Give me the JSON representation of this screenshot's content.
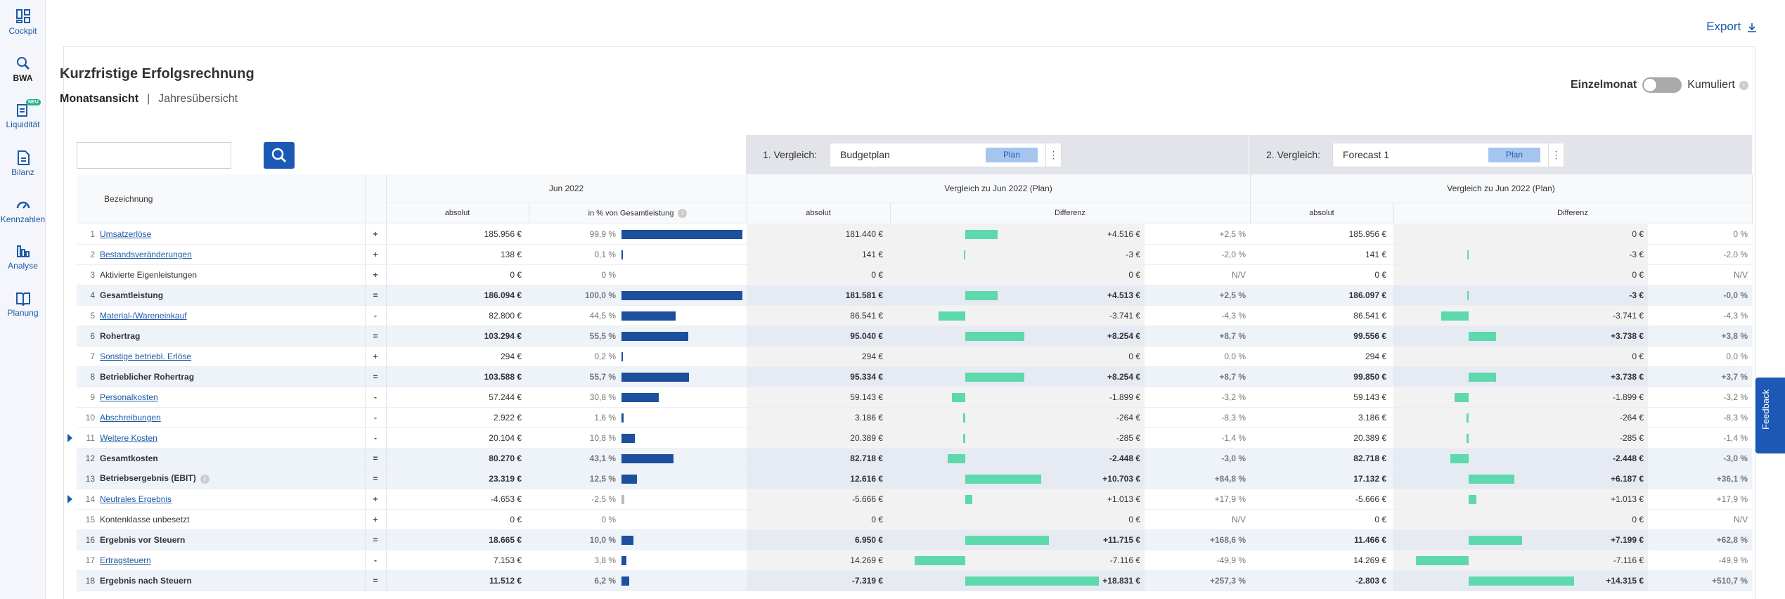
{
  "sidebar": {
    "items": [
      {
        "label": "Cockpit",
        "icon": "dashboard-icon"
      },
      {
        "label": "BWA",
        "icon": "search-chart-icon",
        "active": true
      },
      {
        "label": "Liquidität",
        "icon": "liquidity-icon",
        "badge": "NEU"
      },
      {
        "label": "Bilanz",
        "icon": "document-icon"
      },
      {
        "label": "Kennzahlen",
        "icon": "gauge-icon"
      },
      {
        "label": "Analyse",
        "icon": "bar-chart-icon"
      },
      {
        "label": "Planung",
        "icon": "book-icon"
      }
    ]
  },
  "header": {
    "export_label": "Export"
  },
  "report": {
    "title": "Kurzfristige Erfolgsrechnung",
    "view_month": "Monatsansicht",
    "view_separator": "|",
    "view_year": "Jahresübersicht",
    "toggle_left": "Einzelmonat",
    "toggle_right": "Kumuliert",
    "toggle_state": "Einzelmonat"
  },
  "search": {
    "value": ""
  },
  "comparison1": {
    "label": "1. Vergleich:",
    "selected": "Budgetplan",
    "pill": "Plan"
  },
  "comparison2": {
    "label": "2. Vergleich:",
    "selected": "Forecast 1",
    "pill": "Plan"
  },
  "table": {
    "head": {
      "bezeichnung": "Bezeichnung",
      "period": "Jun 2022",
      "vergleich1": "Vergleich zu Jun 2022 (Plan)",
      "vergleich2": "Vergleich zu Jun 2022 (Plan)",
      "absolut": "absolut",
      "in_prozent": "in % von Gesamtleistung",
      "differenz": "Differenz"
    },
    "rows": [
      {
        "n": "1",
        "name": "Umsatzerlöse",
        "link": true,
        "op": "+",
        "abs": "185.956 €",
        "pct": "99,9 %",
        "share": 99.9,
        "v1abs": "181.440 €",
        "v1diff": "+4.516 €",
        "v1pct": "+2,5 %",
        "v1bar": 4516,
        "v2abs": "185.956 €",
        "v2diff": "0 €",
        "v2pct": "0 %",
        "v2bar": 0
      },
      {
        "n": "2",
        "name": "Bestandsveränderungen",
        "link": true,
        "op": "+",
        "abs": "138 €",
        "pct": "0,1 %",
        "share": 0.1,
        "v1abs": "141 €",
        "v1diff": "-3 €",
        "v1pct": "-2,0 %",
        "v1bar": -3,
        "v2abs": "141 €",
        "v2diff": "-3 €",
        "v2pct": "-2,0 %",
        "v2bar": -3
      },
      {
        "n": "3",
        "name": "Aktivierte Eigenleistungen",
        "link": false,
        "op": "+",
        "abs": "0 €",
        "pct": "0 %",
        "share": 0,
        "v1abs": "0 €",
        "v1diff": "0 €",
        "v1pct": "N/V",
        "v1bar": 0,
        "v2abs": "0 €",
        "v2diff": "0 €",
        "v2pct": "N/V",
        "v2bar": 0
      },
      {
        "n": "4",
        "name": "Gesamtleistung",
        "bold": true,
        "op": "=",
        "abs": "186.094 €",
        "pct": "100,0 %",
        "share": 100,
        "v1abs": "181.581 €",
        "v1diff": "+4.513 €",
        "v1pct": "+2,5 %",
        "v1bar": 4513,
        "v2abs": "186.097 €",
        "v2diff": "-3 €",
        "v2pct": "-0,0 %",
        "v2bar": -3
      },
      {
        "n": "5",
        "name": "Material-/Wareneinkauf",
        "link": true,
        "op": "-",
        "abs": "82.800 €",
        "pct": "44,5 %",
        "share": 44.5,
        "v1abs": "86.541 €",
        "v1diff": "-3.741 €",
        "v1pct": "-4,3 %",
        "v1bar": -3741,
        "v2abs": "86.541 €",
        "v2diff": "-3.741 €",
        "v2pct": "-4,3 %",
        "v2bar": -3741
      },
      {
        "n": "6",
        "name": "Rohertrag",
        "bold": true,
        "op": "=",
        "abs": "103.294 €",
        "pct": "55,5 %",
        "share": 55.5,
        "v1abs": "95.040 €",
        "v1diff": "+8.254 €",
        "v1pct": "+8,7 %",
        "v1bar": 8254,
        "v2abs": "99.556 €",
        "v2diff": "+3.738 €",
        "v2pct": "+3,8 %",
        "v2bar": 3738
      },
      {
        "n": "7",
        "name": "Sonstige betriebl. Erlöse",
        "link": true,
        "op": "+",
        "abs": "294 €",
        "pct": "0,2 %",
        "share": 0.2,
        "v1abs": "294 €",
        "v1diff": "0 €",
        "v1pct": "0,0 %",
        "v1bar": 0,
        "v2abs": "294 €",
        "v2diff": "0 €",
        "v2pct": "0,0 %",
        "v2bar": 0
      },
      {
        "n": "8",
        "name": "Betrieblicher Rohertrag",
        "bold": true,
        "op": "=",
        "abs": "103.588 €",
        "pct": "55,7 %",
        "share": 55.7,
        "v1abs": "95.334 €",
        "v1diff": "+8.254 €",
        "v1pct": "+8,7 %",
        "v1bar": 8254,
        "v2abs": "99.850 €",
        "v2diff": "+3.738 €",
        "v2pct": "+3,7 %",
        "v2bar": 3738
      },
      {
        "n": "9",
        "name": "Personalkosten",
        "link": true,
        "op": "-",
        "abs": "57.244 €",
        "pct": "30,8 %",
        "share": 30.8,
        "v1abs": "59.143 €",
        "v1diff": "-1.899 €",
        "v1pct": "-3,2 %",
        "v1bar": -1899,
        "v2abs": "59.143 €",
        "v2diff": "-1.899 €",
        "v2pct": "-3,2 %",
        "v2bar": -1899
      },
      {
        "n": "10",
        "name": "Abschreibungen",
        "link": true,
        "op": "-",
        "abs": "2.922 €",
        "pct": "1,6 %",
        "share": 1.6,
        "v1abs": "3.186 €",
        "v1diff": "-264 €",
        "v1pct": "-8,3 %",
        "v1bar": -264,
        "v2abs": "3.186 €",
        "v2diff": "-264 €",
        "v2pct": "-8,3 %",
        "v2bar": -264
      },
      {
        "n": "11",
        "name": "Weitere Kosten",
        "link": true,
        "caret": true,
        "op": "-",
        "abs": "20.104 €",
        "pct": "10,8 %",
        "share": 10.8,
        "v1abs": "20.389 €",
        "v1diff": "-285 €",
        "v1pct": "-1,4 %",
        "v1bar": -285,
        "v2abs": "20.389 €",
        "v2diff": "-285 €",
        "v2pct": "-1,4 %",
        "v2bar": -285
      },
      {
        "n": "12",
        "name": "Gesamtkosten",
        "bold": true,
        "op": "=",
        "abs": "80.270 €",
        "pct": "43,1 %",
        "share": 43.1,
        "v1abs": "82.718 €",
        "v1diff": "-2.448 €",
        "v1pct": "-3,0 %",
        "v1bar": -2448,
        "v2abs": "82.718 €",
        "v2diff": "-2.448 €",
        "v2pct": "-3,0 %",
        "v2bar": -2448
      },
      {
        "n": "13",
        "name": "Betriebsergebnis (EBIT)",
        "bold": true,
        "info": true,
        "op": "=",
        "abs": "23.319 €",
        "pct": "12,5 %",
        "share": 12.5,
        "v1abs": "12.616 €",
        "v1diff": "+10.703 €",
        "v1pct": "+84,8 %",
        "v1bar": 10703,
        "v2abs": "17.132 €",
        "v2diff": "+6.187 €",
        "v2pct": "+36,1 %",
        "v2bar": 6187
      },
      {
        "n": "14",
        "name": "Neutrales Ergebnis",
        "link": true,
        "caret": true,
        "op": "+",
        "abs": "-4.653 €",
        "pct": "-2,5 %",
        "share": -2.5,
        "v1abs": "-5.666 €",
        "v1diff": "+1.013 €",
        "v1pct": "+17,9 %",
        "v1bar": 1013,
        "v2abs": "-5.666 €",
        "v2diff": "+1.013 €",
        "v2pct": "+17,9 %",
        "v2bar": 1013
      },
      {
        "n": "15",
        "name": "Kontenklasse unbesetzt",
        "link": false,
        "op": "+",
        "abs": "0 €",
        "pct": "0 %",
        "share": 0,
        "v1abs": "0 €",
        "v1diff": "0 €",
        "v1pct": "N/V",
        "v1bar": 0,
        "v2abs": "0 €",
        "v2diff": "0 €",
        "v2pct": "N/V",
        "v2bar": 0
      },
      {
        "n": "16",
        "name": "Ergebnis vor Steuern",
        "bold": true,
        "op": "=",
        "abs": "18.665 €",
        "pct": "10,0 %",
        "share": 10,
        "v1abs": "6.950 €",
        "v1diff": "+11.715 €",
        "v1pct": "+168,6 %",
        "v1bar": 11715,
        "v2abs": "11.466 €",
        "v2diff": "+7.199 €",
        "v2pct": "+62,8 %",
        "v2bar": 7199
      },
      {
        "n": "17",
        "name": "Ertragsteuern",
        "link": true,
        "op": "-",
        "abs": "7.153 €",
        "pct": "3,8 %",
        "share": 3.8,
        "v1abs": "14.269 €",
        "v1diff": "-7.116 €",
        "v1pct": "-49,9 %",
        "v1bar": -7116,
        "v2abs": "14.269 €",
        "v2diff": "-7.116 €",
        "v2pct": "-49,9 %",
        "v2bar": -7116
      },
      {
        "n": "18",
        "name": "Ergebnis nach Steuern",
        "bold": true,
        "op": "=",
        "abs": "11.512 €",
        "pct": "6,2 %",
        "share": 6.2,
        "v1abs": "-7.319 €",
        "v1diff": "+18.831 €",
        "v1pct": "+257,3 %",
        "v1bar": 18831,
        "v2abs": "-2.803 €",
        "v2diff": "+14.315 €",
        "v2pct": "+510,7 %",
        "v2bar": 14315
      }
    ]
  },
  "feedback": {
    "label": "Feedback"
  },
  "colors": {
    "brand": "#1c59b4",
    "bar_share": "#1c4f9c",
    "bar_diff": "#5ed8ad"
  }
}
